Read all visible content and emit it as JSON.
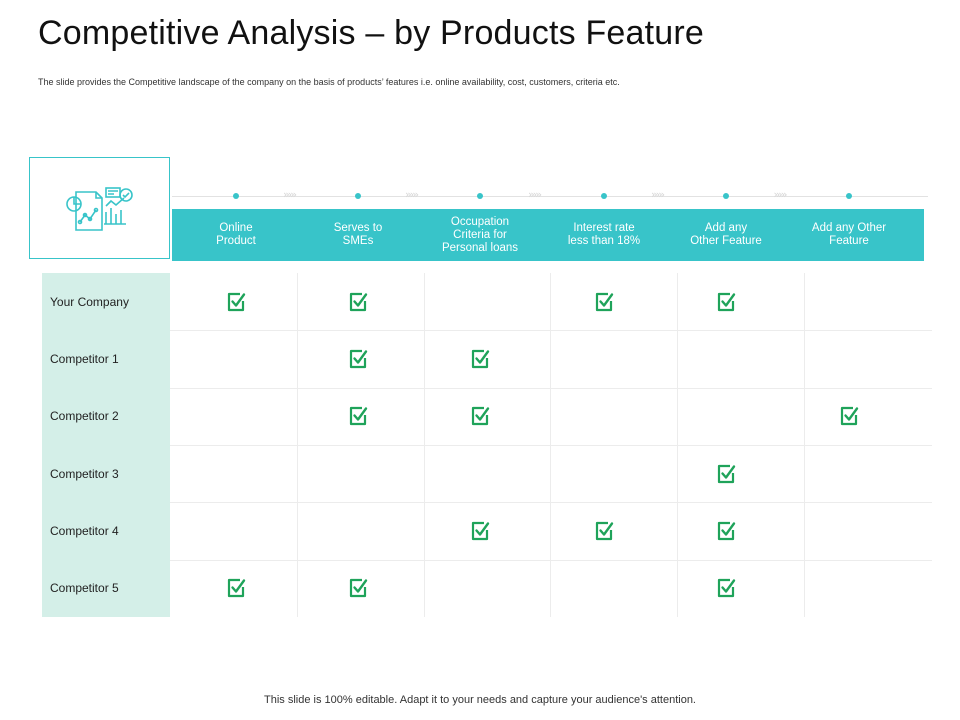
{
  "slide": {
    "title": "Competitive Analysis – by Products Feature",
    "subtitle": "The slide provides the Competitive landscape of the company on the basis of products’ features i.e. online availability, cost, customers, criteria etc.",
    "footer": "This slide is 100% editable. Adapt it to your needs and capture your audience's attention."
  },
  "colors": {
    "accent": "#38c4c9",
    "label_bg": "#d4efe8",
    "check": "#1fa35a"
  },
  "icons": {
    "header_icon": "analytics-report-icon",
    "cell_icon": "checkbox-checked-icon"
  },
  "table": {
    "columns": [
      "Online\nProduct",
      "Serves to\nSMEs",
      "Occupation\nCriteria for\nPersonal loans",
      "Interest rate\nless than 18%",
      "Add any\nOther Feature",
      "Add any Other\nFeature"
    ],
    "rows": [
      {
        "name": "Your Company",
        "checks": [
          true,
          true,
          false,
          true,
          true,
          false
        ]
      },
      {
        "name": "Competitor 1",
        "checks": [
          false,
          true,
          true,
          false,
          false,
          false
        ]
      },
      {
        "name": "Competitor 2",
        "checks": [
          false,
          true,
          true,
          false,
          false,
          true
        ]
      },
      {
        "name": "Competitor 3",
        "checks": [
          false,
          false,
          false,
          false,
          true,
          false
        ]
      },
      {
        "name": "Competitor 4",
        "checks": [
          false,
          false,
          true,
          true,
          true,
          false
        ]
      },
      {
        "name": "Competitor 5",
        "checks": [
          true,
          true,
          false,
          false,
          true,
          false
        ]
      }
    ]
  }
}
